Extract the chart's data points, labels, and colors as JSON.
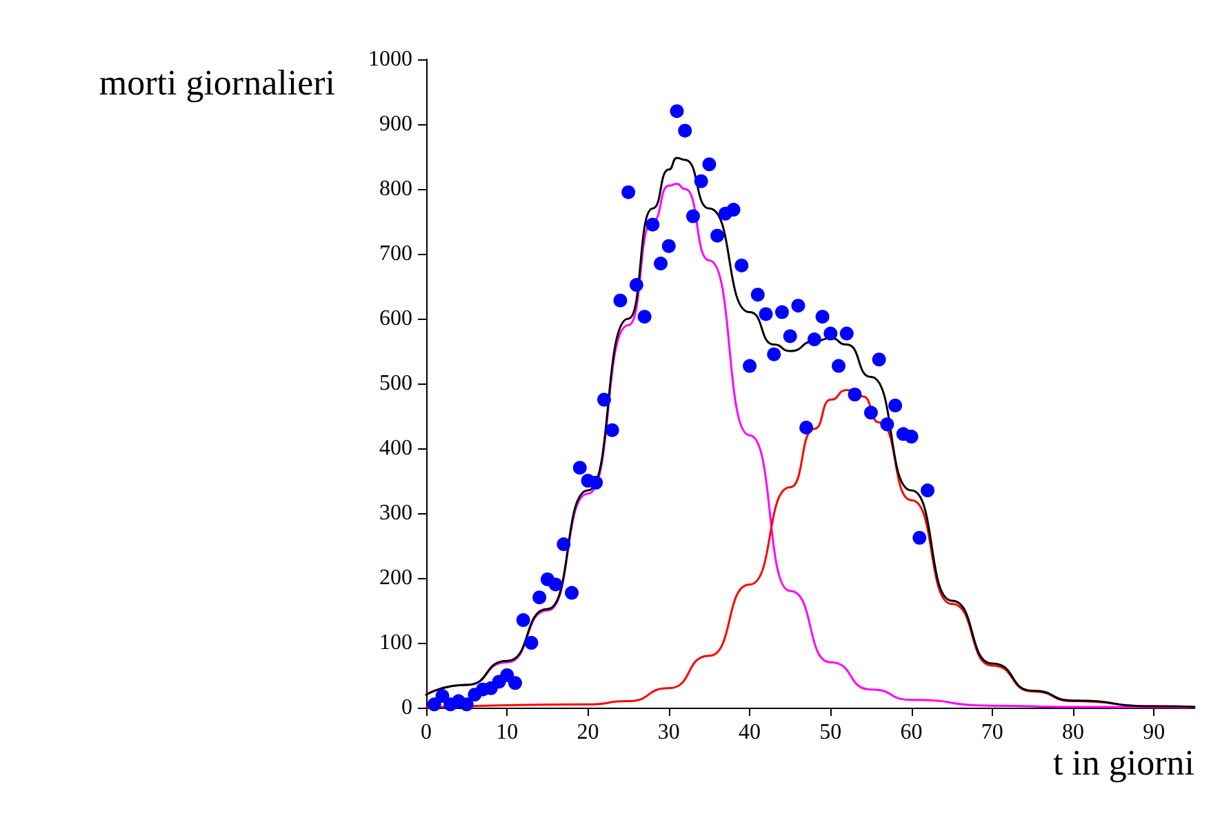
{
  "chart_data": {
    "type": "scatter",
    "xlabel": "t in giorni",
    "ylabel": "morti giornalieri",
    "xlim": [
      0,
      95
    ],
    "xticks": [
      0,
      10,
      20,
      30,
      40,
      50,
      60,
      70,
      80,
      90
    ],
    "ylim": [
      0,
      1000
    ],
    "yticks": [
      0,
      100,
      200,
      300,
      400,
      500,
      600,
      700,
      800,
      900,
      1000
    ],
    "grid": false,
    "marker": "circle",
    "series": [
      {
        "type": "line",
        "color": "#ff00ff",
        "marker": "none",
        "x": [
          0,
          5,
          10,
          15,
          20,
          25,
          28,
          30,
          31,
          32,
          35,
          40,
          45,
          50,
          55,
          60,
          70,
          80,
          95
        ],
        "values": [
          20,
          35,
          70,
          150,
          330,
          590,
          750,
          805,
          808,
          800,
          690,
          420,
          180,
          70,
          28,
          12,
          3,
          1,
          0
        ]
      },
      {
        "type": "line",
        "color": "#ff0000",
        "marker": "none",
        "x": [
          0,
          20,
          25,
          30,
          35,
          40,
          45,
          48,
          50,
          52,
          54,
          56,
          60,
          65,
          70,
          75,
          80,
          90,
          95
        ],
        "values": [
          0,
          5,
          10,
          30,
          80,
          190,
          340,
          430,
          475,
          490,
          480,
          440,
          320,
          160,
          65,
          25,
          10,
          2,
          1
        ]
      },
      {
        "type": "line",
        "color": "#000000",
        "marker": "none",
        "x": [
          0,
          5,
          10,
          15,
          20,
          25,
          28,
          30,
          31,
          32,
          35,
          40,
          43,
          45,
          48,
          50,
          52,
          55,
          60,
          65,
          70,
          75,
          80,
          90,
          95
        ],
        "values": [
          20,
          35,
          72,
          152,
          335,
          600,
          770,
          830,
          848,
          845,
          770,
          610,
          560,
          550,
          565,
          570,
          560,
          510,
          335,
          165,
          68,
          26,
          11,
          2,
          1
        ]
      },
      {
        "color": "#0000ff",
        "x": [
          1,
          2,
          3,
          4,
          5,
          6,
          7,
          8,
          9,
          10,
          11,
          12,
          13,
          14,
          15,
          16,
          17,
          18,
          19,
          20,
          21,
          22,
          23,
          24,
          25,
          26,
          27,
          28,
          29,
          30,
          31,
          32,
          33,
          34,
          35,
          36,
          37,
          38,
          39,
          40,
          41,
          42,
          43,
          44,
          45,
          46,
          47,
          48,
          49,
          50,
          51,
          52,
          53,
          55,
          56,
          57,
          58,
          59,
          60,
          61,
          62
        ],
        "values": [
          5,
          18,
          5,
          10,
          5,
          20,
          28,
          30,
          40,
          50,
          38,
          135,
          100,
          170,
          198,
          190,
          252,
          177,
          370,
          350,
          347,
          475,
          428,
          628,
          795,
          652,
          603,
          745,
          685,
          712,
          920,
          890,
          758,
          812,
          838,
          728,
          762,
          768,
          682,
          527,
          637,
          607,
          545,
          610,
          573,
          620,
          432,
          568,
          603,
          577,
          527,
          577,
          483,
          455,
          537,
          437,
          466,
          422,
          418,
          262,
          335
        ]
      }
    ]
  }
}
